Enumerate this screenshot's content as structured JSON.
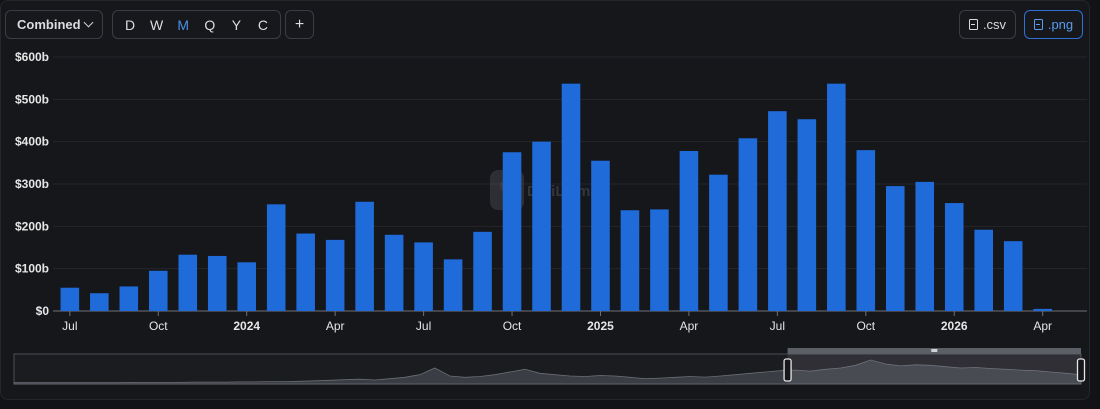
{
  "toolbar": {
    "select_label": "Combined",
    "intervals": [
      "D",
      "W",
      "M",
      "Q",
      "Y",
      "C"
    ],
    "active_interval": "M",
    "add_label": "+",
    "csv_label": ".csv",
    "png_label": ".png"
  },
  "colors": {
    "bar": "#1f6bd9",
    "active": "#4c8fe6",
    "accent_border": "#2f6fd6"
  },
  "chart_data": {
    "type": "bar",
    "title": "",
    "xlabel": "",
    "ylabel": "",
    "ylim": [
      0,
      600
    ],
    "y_unit": "b",
    "y_ticks": [
      "$0",
      "$100b",
      "$200b",
      "$300b",
      "$400b",
      "$500b",
      "$600b"
    ],
    "y_tick_values": [
      0,
      100,
      200,
      300,
      400,
      500,
      600
    ],
    "categories": [
      "2023-07",
      "2023-08",
      "2023-09",
      "2023-10",
      "2023-11",
      "2023-12",
      "2024-01",
      "2024-02",
      "2024-03",
      "2024-04",
      "2024-05",
      "2024-06",
      "2024-07",
      "2024-08",
      "2024-09",
      "2024-10",
      "2024-11",
      "2024-12",
      "2025-01",
      "2025-02",
      "2025-03",
      "2025-04",
      "2025-05",
      "2025-06",
      "2025-07",
      "2025-08",
      "2025-09",
      "2025-10",
      "2025-11",
      "2025-12",
      "2026-01",
      "2026-02",
      "2026-03",
      "2026-04",
      "2026-05"
    ],
    "values": [
      55,
      42,
      58,
      95,
      133,
      130,
      115,
      252,
      183,
      168,
      258,
      180,
      162,
      122,
      187,
      375,
      400,
      537,
      355,
      238,
      240,
      378,
      322,
      408,
      472,
      453,
      537,
      380,
      295,
      305,
      255,
      192,
      165,
      5,
      0
    ],
    "x_tick_labels": [
      {
        "label": "Jul",
        "category": "2023-07",
        "bold": false
      },
      {
        "label": "Oct",
        "category": "2023-10",
        "bold": false
      },
      {
        "label": "2024",
        "category": "2024-01",
        "bold": true
      },
      {
        "label": "Apr",
        "category": "2024-04",
        "bold": false
      },
      {
        "label": "Jul",
        "category": "2024-07",
        "bold": false
      },
      {
        "label": "Oct",
        "category": "2024-10",
        "bold": false
      },
      {
        "label": "2025",
        "category": "2025-01",
        "bold": true
      },
      {
        "label": "Apr",
        "category": "2025-04",
        "bold": false
      },
      {
        "label": "Jul",
        "category": "2025-07",
        "bold": false
      },
      {
        "label": "Oct",
        "category": "2025-10",
        "bold": false
      },
      {
        "label": "2026",
        "category": "2026-01",
        "bold": true
      },
      {
        "label": "Apr",
        "category": "2026-04",
        "bold": false
      }
    ],
    "grid": true,
    "watermark": "DefiLlama",
    "brush": {
      "overview_values": [
        5,
        5,
        5,
        5,
        5,
        5,
        5,
        5,
        6,
        6,
        6,
        6,
        7,
        7,
        7,
        8,
        8,
        9,
        9,
        10,
        12,
        14,
        16,
        18,
        15,
        20,
        25,
        35,
        60,
        30,
        25,
        28,
        35,
        45,
        55,
        40,
        35,
        30,
        28,
        32,
        30,
        25,
        20,
        22,
        25,
        28,
        26,
        30,
        35,
        40,
        45,
        50,
        52,
        48,
        55,
        60,
        70,
        90,
        75,
        68,
        72,
        70,
        65,
        60,
        62,
        58,
        55,
        52,
        50,
        45,
        40,
        35
      ],
      "selection": [
        0.725,
        1.0
      ]
    }
  }
}
